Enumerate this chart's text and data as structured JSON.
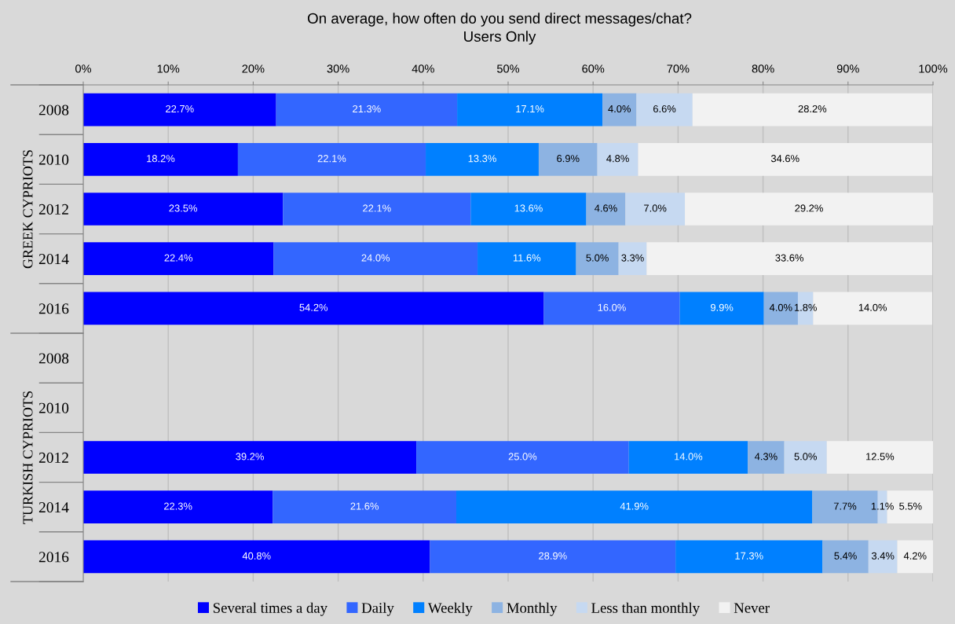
{
  "chart_data": {
    "type": "bar",
    "orientation": "horizontal",
    "stacked": true,
    "title": "On average, how often do you send direct messages/chat?",
    "subtitle": "Users Only",
    "categories": [
      "2008",
      "2010",
      "2012",
      "2014",
      "2016",
      "2008",
      "2010",
      "2012",
      "2014",
      "2016"
    ],
    "annotations": [
      "GREEK CYPRIOTS",
      "TURKISH CYPRIOTS"
    ],
    "xlim": [
      0,
      100
    ],
    "xticks": [
      {
        "value": 0,
        "label": "0%"
      },
      {
        "value": 10,
        "label": "10%"
      },
      {
        "value": 20,
        "label": "20%"
      },
      {
        "value": 30,
        "label": "30%"
      },
      {
        "value": 40,
        "label": "40%"
      },
      {
        "value": 50,
        "label": "50%"
      },
      {
        "value": 60,
        "label": "60%"
      },
      {
        "value": 70,
        "label": "70%"
      },
      {
        "value": 80,
        "label": "80%"
      },
      {
        "value": 90,
        "label": "90%"
      },
      {
        "value": 100,
        "label": "100%"
      }
    ],
    "grid": "x",
    "legend": "bottom",
    "series": [
      {
        "name": "Several times a day",
        "color": "#0000ff",
        "values": [
          22.7,
          18.2,
          23.5,
          22.4,
          54.2,
          null,
          null,
          39.2,
          22.3,
          40.8
        ],
        "value_labels": [
          "22.7%",
          "18.2%",
          "23.5%",
          "22.4%",
          "54.2%",
          null,
          null,
          "39.2%",
          "22.3%",
          "40.8%"
        ]
      },
      {
        "name": "Daily",
        "color": "#3366ff",
        "values": [
          21.3,
          22.1,
          22.1,
          24.0,
          16.0,
          null,
          null,
          25.0,
          21.6,
          28.9
        ],
        "value_labels": [
          "21.3%",
          "22.1%",
          "22.1%",
          "24.0%",
          "16.0%",
          null,
          null,
          "25.0%",
          "21.6%",
          "28.9%"
        ]
      },
      {
        "name": "Weekly",
        "color": "#0080ff",
        "values": [
          17.1,
          13.3,
          13.6,
          11.6,
          9.9,
          null,
          null,
          14.0,
          41.9,
          17.3
        ],
        "value_labels": [
          "17.1%",
          "13.3%",
          "13.6%",
          "11.6%",
          "9.9%",
          null,
          null,
          "14.0%",
          "41.9%",
          "17.3%"
        ]
      },
      {
        "name": "Monthly",
        "color": "#8db3e2",
        "values": [
          4.0,
          6.9,
          4.6,
          5.0,
          4.0,
          null,
          null,
          4.3,
          7.7,
          5.4
        ],
        "value_labels": [
          "4.0%",
          "6.9%",
          "4.6%",
          "5.0%",
          "4.0%",
          null,
          null,
          "4.3%",
          "7.7%",
          "5.4%"
        ]
      },
      {
        "name": "Less than monthly",
        "color": "#c6d9f1",
        "values": [
          6.6,
          4.8,
          7.0,
          3.3,
          1.8,
          null,
          null,
          5.0,
          1.1,
          3.4
        ],
        "value_labels": [
          "6.6%",
          "4.8%",
          "7.0%",
          "3.3%",
          "1.8%",
          null,
          null,
          "5.0%",
          "1.1%",
          "3.4%"
        ]
      },
      {
        "name": "Never",
        "color": "#f2f2f2",
        "values": [
          28.2,
          34.6,
          29.2,
          33.6,
          14.0,
          null,
          null,
          12.5,
          5.5,
          4.2
        ],
        "value_labels": [
          "28.2%",
          "34.6%",
          "29.2%",
          "33.6%",
          "14.0%",
          null,
          null,
          "12.5%",
          "5.5%",
          "4.2%"
        ]
      }
    ]
  }
}
